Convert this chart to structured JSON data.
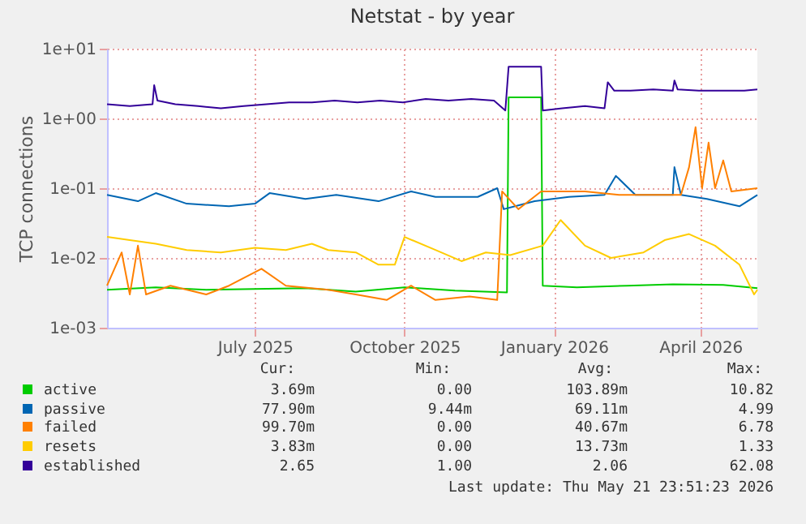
{
  "chart_data": {
    "type": "line",
    "title": "Netstat - by year",
    "ylabel": "TCP connections",
    "log": true,
    "grid": true,
    "legend": "bottom",
    "marker": "none",
    "line_style": "solid",
    "xlim": [
      "2025-04-01",
      "2026-05-06"
    ],
    "xticks": [
      {
        "value": "2025-07-01",
        "label": "July 2025"
      },
      {
        "value": "2025-10-01",
        "label": "October 2025"
      },
      {
        "value": "2026-01-01",
        "label": "January 2026"
      },
      {
        "value": "2026-04-01",
        "label": "April 2026"
      }
    ],
    "ylim": [
      0.001,
      10
    ],
    "yticks": [
      {
        "value": 0.001,
        "label": "1e-03"
      },
      {
        "value": 0.01,
        "label": "1e-02"
      },
      {
        "value": 0.1,
        "label": "1e-01"
      },
      {
        "value": 1,
        "label": "1e+00"
      },
      {
        "value": 10,
        "label": "1e+01"
      }
    ],
    "series": [
      {
        "name": "active",
        "color": "#00cc00",
        "x": [
          "2025-04-01",
          "2025-05-01",
          "2025-06-01",
          "2025-07-01",
          "2025-08-01",
          "2025-09-01",
          "2025-10-01",
          "2025-11-01",
          "2025-12-03",
          "2025-12-04",
          "2025-12-24",
          "2025-12-25",
          "2026-01-15",
          "2026-02-15",
          "2026-03-15",
          "2026-04-15",
          "2026-05-06"
        ],
        "values": [
          0.0035,
          0.0038,
          0.0035,
          0.0036,
          0.0037,
          0.0033,
          0.0038,
          0.0034,
          0.0032,
          2.0,
          2.0,
          0.004,
          0.0038,
          0.004,
          0.0042,
          0.0041,
          0.0037
        ]
      },
      {
        "name": "passive",
        "color": "#0066b3",
        "x": [
          "2025-04-01",
          "2025-04-20",
          "2025-05-01",
          "2025-05-20",
          "2025-06-15",
          "2025-07-01",
          "2025-07-10",
          "2025-08-01",
          "2025-08-20",
          "2025-09-15",
          "2025-10-05",
          "2025-10-20",
          "2025-11-15",
          "2025-11-27",
          "2025-12-01",
          "2025-12-20",
          "2026-01-10",
          "2026-02-01",
          "2026-02-08",
          "2026-02-20",
          "2026-03-15",
          "2026-03-16",
          "2026-03-20",
          "2026-04-05",
          "2026-04-25",
          "2026-05-06"
        ],
        "values": [
          0.08,
          0.065,
          0.085,
          0.06,
          0.055,
          0.06,
          0.085,
          0.07,
          0.08,
          0.065,
          0.09,
          0.075,
          0.075,
          0.1,
          0.05,
          0.065,
          0.075,
          0.08,
          0.15,
          0.08,
          0.08,
          0.2,
          0.08,
          0.07,
          0.055,
          0.08
        ]
      },
      {
        "name": "failed",
        "color": "#ff8000",
        "x": [
          "2025-04-01",
          "2025-04-10",
          "2025-04-15",
          "2025-04-20",
          "2025-04-25",
          "2025-05-10",
          "2025-06-01",
          "2025-06-15",
          "2025-07-05",
          "2025-07-20",
          "2025-08-15",
          "2025-09-01",
          "2025-09-20",
          "2025-10-05",
          "2025-10-20",
          "2025-11-10",
          "2025-11-27",
          "2025-11-30",
          "2025-12-10",
          "2025-12-24",
          "2026-01-20",
          "2026-02-10",
          "2026-03-20",
          "2026-03-25",
          "2026-03-29",
          "2026-04-02",
          "2026-04-06",
          "2026-04-10",
          "2026-04-15",
          "2026-04-20",
          "2026-05-06"
        ],
        "values": [
          0.004,
          0.012,
          0.003,
          0.015,
          0.003,
          0.004,
          0.003,
          0.004,
          0.007,
          0.004,
          0.0035,
          0.003,
          0.0025,
          0.004,
          0.0025,
          0.0028,
          0.0025,
          0.09,
          0.05,
          0.09,
          0.09,
          0.08,
          0.08,
          0.2,
          0.75,
          0.1,
          0.45,
          0.1,
          0.25,
          0.09,
          0.1
        ]
      },
      {
        "name": "resets",
        "color": "#ffcc00",
        "x": [
          "2025-04-01",
          "2025-04-15",
          "2025-05-01",
          "2025-05-20",
          "2025-06-10",
          "2025-07-01",
          "2025-07-20",
          "2025-08-05",
          "2025-08-15",
          "2025-09-01",
          "2025-09-15",
          "2025-09-25",
          "2025-10-01",
          "2025-10-20",
          "2025-11-05",
          "2025-11-20",
          "2025-12-05",
          "2025-12-25",
          "2026-01-05",
          "2026-01-20",
          "2026-02-05",
          "2026-02-25",
          "2026-03-10",
          "2026-03-25",
          "2026-04-10",
          "2026-04-25",
          "2026-05-04",
          "2026-05-06"
        ],
        "values": [
          0.02,
          0.018,
          0.016,
          0.013,
          0.012,
          0.014,
          0.013,
          0.016,
          0.013,
          0.012,
          0.008,
          0.008,
          0.02,
          0.013,
          0.009,
          0.012,
          0.011,
          0.015,
          0.035,
          0.015,
          0.01,
          0.012,
          0.018,
          0.022,
          0.015,
          0.008,
          0.003,
          0.0035
        ]
      },
      {
        "name": "established",
        "color": "#330099",
        "x": [
          "2025-04-01",
          "2025-04-15",
          "2025-04-29",
          "2025-04-30",
          "2025-05-02",
          "2025-05-13",
          "2025-05-27",
          "2025-06-10",
          "2025-06-24",
          "2025-07-08",
          "2025-07-22",
          "2025-08-05",
          "2025-08-19",
          "2025-09-02",
          "2025-09-16",
          "2025-09-30",
          "2025-10-14",
          "2025-10-28",
          "2025-11-11",
          "2025-11-25",
          "2025-12-02",
          "2025-12-04",
          "2025-12-24",
          "2025-12-25",
          "2026-01-06",
          "2026-01-20",
          "2026-02-01",
          "2026-02-03",
          "2026-02-07",
          "2026-02-17",
          "2026-03-03",
          "2026-03-15",
          "2026-03-16",
          "2026-03-18",
          "2026-03-31",
          "2026-04-14",
          "2026-04-28",
          "2026-05-06"
        ],
        "values": [
          1.6,
          1.5,
          1.6,
          3.0,
          1.8,
          1.6,
          1.5,
          1.4,
          1.5,
          1.6,
          1.7,
          1.7,
          1.8,
          1.7,
          1.8,
          1.7,
          1.9,
          1.8,
          1.9,
          1.8,
          1.3,
          5.5,
          5.5,
          1.3,
          1.4,
          1.5,
          1.4,
          3.3,
          2.5,
          2.5,
          2.6,
          2.5,
          3.5,
          2.6,
          2.5,
          2.5,
          2.5,
          2.6
        ]
      }
    ],
    "annotations": [
      "Cur:",
      "Min:",
      "Avg:",
      "Max:",
      "3.69m",
      "0.00",
      "103.89m",
      "10.82",
      "77.90m",
      "9.44m",
      "69.11m",
      "4.99",
      "99.70m",
      "0.00",
      "40.67m",
      "6.78",
      "3.83m",
      "0.00",
      "13.73m",
      "1.33",
      "2.65",
      "1.00",
      "2.06",
      "62.08",
      "Last update: Thu May 21 23:51:23 2026"
    ]
  }
}
